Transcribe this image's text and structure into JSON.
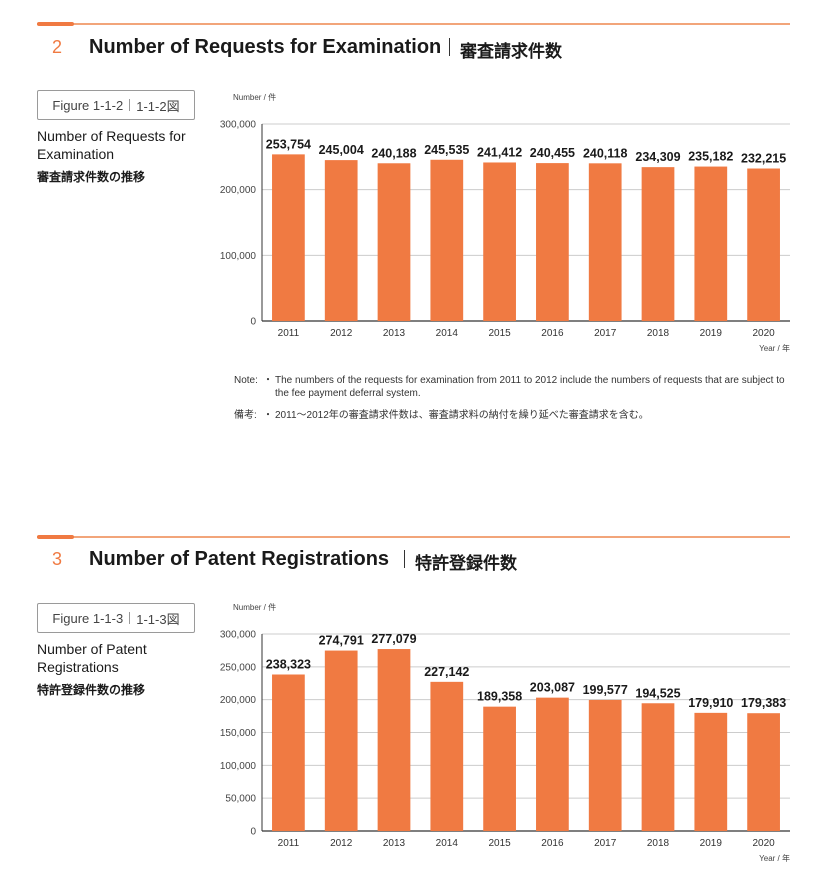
{
  "section2": {
    "number": "2",
    "title": "Number of Requests for Examination",
    "title_ja": "審査請求件数",
    "figure_label": "Figure 1-1-2",
    "figure_label_ja": "1-1-2図",
    "figure_title": "Number of Requests for Examination",
    "figure_title_ja": "審査請求件数の推移",
    "note_label": "Note:",
    "note_text": "The numbers of the requests for examination from 2011 to 2012 include the numbers of requests that are subject to the fee payment deferral system.",
    "note_label_ja": "備考:",
    "note_text_ja": "2011～2012年の審査請求件数は、審査請求料の納付を繰り延べた審査請求を含む。",
    "bullet": "・"
  },
  "section3": {
    "number": "3",
    "title": "Number of Patent Registrations",
    "title_ja": "特許登録件数",
    "figure_label": "Figure 1-1-3",
    "figure_label_ja": "1-1-3図",
    "figure_title": "Number of Patent Registrations",
    "figure_title_ja": "特許登録件数の推移"
  },
  "colors": {
    "bar": "#f07a42",
    "accent": "#f07a42",
    "rule": "#f2a57a",
    "gridline": "#cccccc",
    "axis": "#333333"
  },
  "chart_data": [
    {
      "type": "bar",
      "categories": [
        "2011",
        "2012",
        "2013",
        "2014",
        "2015",
        "2016",
        "2017",
        "2018",
        "2019",
        "2020"
      ],
      "values": [
        253754,
        245004,
        240188,
        245535,
        241412,
        240455,
        240118,
        234309,
        235182,
        232215
      ],
      "value_labels": [
        "253,754",
        "245,004",
        "240,188",
        "245,535",
        "241,412",
        "240,455",
        "240,118",
        "234,309",
        "235,182",
        "232,215"
      ],
      "ylabel": "Number / 件",
      "xlabel": "Year / 年",
      "ylim": [
        0,
        300000
      ],
      "yticks": [
        0,
        100000,
        200000,
        300000
      ],
      "ytick_labels": [
        "0",
        "100,000",
        "200,000",
        "300,000"
      ],
      "grid": true
    },
    {
      "type": "bar",
      "categories": [
        "2011",
        "2012",
        "2013",
        "2014",
        "2015",
        "2016",
        "2017",
        "2018",
        "2019",
        "2020"
      ],
      "values": [
        238323,
        274791,
        277079,
        227142,
        189358,
        203087,
        199577,
        194525,
        179910,
        179383
      ],
      "value_labels": [
        "238,323",
        "274,791",
        "277,079",
        "227,142",
        "189,358",
        "203,087",
        "199,577",
        "194,525",
        "179,910",
        "179,383"
      ],
      "ylabel": "Number / 件",
      "xlabel": "Year / 年",
      "ylim": [
        0,
        300000
      ],
      "yticks": [
        0,
        50000,
        100000,
        150000,
        200000,
        250000,
        300000
      ],
      "ytick_labels": [
        "0",
        "50,000",
        "100,000",
        "150,000",
        "200,000",
        "250,000",
        "300,000"
      ],
      "grid": true
    }
  ]
}
